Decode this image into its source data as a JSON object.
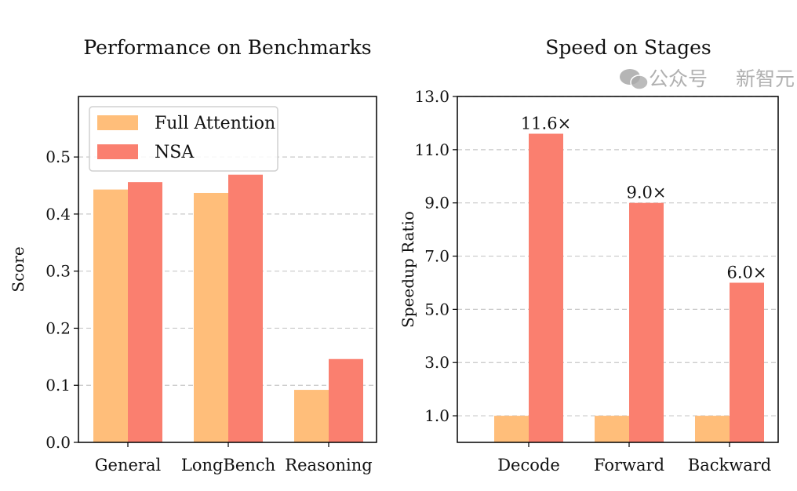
{
  "colors": {
    "full_attention": "#FFBE7A",
    "nsa": "#FA7F6F",
    "grid": "#c8c8c8"
  },
  "chart_data": [
    {
      "type": "bar",
      "title": "Performance on Benchmarks",
      "xlabel": "",
      "ylabel": "Score",
      "categories": [
        "General",
        "LongBench",
        "Reasoning"
      ],
      "series": [
        {
          "name": "Full Attention",
          "values": [
            0.443,
            0.437,
            0.092
          ]
        },
        {
          "name": "NSA",
          "values": [
            0.456,
            0.469,
            0.146
          ]
        }
      ],
      "ylim": [
        0,
        0.606
      ],
      "yticks": [
        "0.0",
        "0.1",
        "0.2",
        "0.3",
        "0.4",
        "0.5"
      ],
      "ytick_values": [
        0,
        0.1,
        0.2,
        0.3,
        0.4,
        0.5
      ],
      "grid": "horizontal dashed",
      "legend": "top-left"
    },
    {
      "type": "bar",
      "title": "Speed on Stages",
      "xlabel": "",
      "ylabel": "Speedup Ratio",
      "categories": [
        "Decode",
        "Forward",
        "Backward"
      ],
      "series": [
        {
          "name": "Full Attention",
          "values": [
            1.0,
            1.0,
            1.0
          ]
        },
        {
          "name": "NSA",
          "values": [
            11.6,
            9.0,
            6.0
          ]
        }
      ],
      "data_labels": [
        "11.6×",
        "9.0×",
        "6.0×"
      ],
      "ylim": [
        0,
        13
      ],
      "yticks": [
        "1.0",
        "3.0",
        "5.0",
        "7.0",
        "9.0",
        "11.0",
        "13.0"
      ],
      "ytick_values": [
        1,
        3,
        5,
        7,
        9,
        11,
        13
      ],
      "grid": "horizontal dashed"
    }
  ],
  "watermark": {
    "left": "公众号",
    "right": "新智元",
    "icon": "wechat-icon"
  }
}
